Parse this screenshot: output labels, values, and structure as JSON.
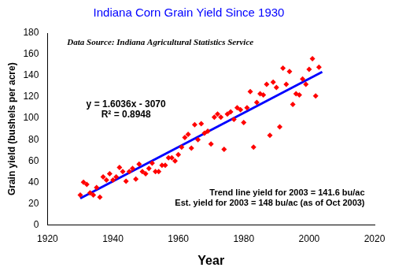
{
  "chart_data": {
    "type": "scatter",
    "title": "Indiana Corn Grain Yield Since 1930",
    "x_label": "Year",
    "y_label": "Grain yield (bushels per acre)",
    "annotations": [
      "Data Source: Indiana Agricultural Statistics Service",
      "y = 1.6036x - 3070",
      "R² = 0.8948",
      "Trend line yield for 2003 = 141.6 bu/ac",
      "Est. yield for 2003 = 148 bu/ac (as of Oct 2003)"
    ],
    "xlim": [
      1920,
      2020
    ],
    "xticks": [
      1920,
      1940,
      1960,
      1980,
      2000,
      2020
    ],
    "ylim": [
      0,
      180
    ],
    "yticks": [
      0,
      20,
      40,
      60,
      80,
      100,
      120,
      140,
      160,
      180
    ],
    "grid": false,
    "series": [
      {
        "type": "scatter",
        "color": "#ff0000",
        "marker": "diamond",
        "x": [
          1930,
          1931,
          1932,
          1933,
          1934,
          1935,
          1936,
          1937,
          1938,
          1939,
          1940,
          1941,
          1942,
          1943,
          1944,
          1945,
          1946,
          1947,
          1948,
          1949,
          1950,
          1951,
          1952,
          1953,
          1954,
          1955,
          1956,
          1957,
          1958,
          1959,
          1960,
          1961,
          1962,
          1963,
          1964,
          1965,
          1966,
          1967,
          1968,
          1969,
          1970,
          1971,
          1972,
          1973,
          1974,
          1975,
          1976,
          1977,
          1978,
          1979,
          1980,
          1981,
          1982,
          1983,
          1984,
          1985,
          1986,
          1987,
          1988,
          1989,
          1990,
          1991,
          1992,
          1993,
          1994,
          1995,
          1996,
          1997,
          1998,
          1999,
          2000,
          2001,
          2002,
          2003
        ],
        "values": [
          28,
          40,
          38,
          30,
          28,
          35,
          26,
          45,
          42,
          48,
          42,
          45,
          54,
          50,
          41,
          50,
          53,
          43,
          57,
          50,
          48,
          53,
          58,
          50,
          50,
          56,
          56,
          63,
          63,
          60,
          66,
          73,
          82,
          85,
          72,
          94,
          80,
          95,
          86,
          88,
          76,
          101,
          104,
          101,
          71,
          104,
          106,
          99,
          110,
          108,
          96,
          110,
          125,
          73,
          115,
          123,
          122,
          132,
          84,
          134,
          129,
          92,
          147,
          132,
          144,
          113,
          123,
          122,
          137,
          132,
          146,
          156,
          121,
          148
        ]
      },
      {
        "type": "line",
        "color": "#0000ff",
        "line_style": "solid",
        "x": [
          1930,
          2004
        ],
        "values": [
          24.9,
          143.6
        ]
      }
    ]
  }
}
